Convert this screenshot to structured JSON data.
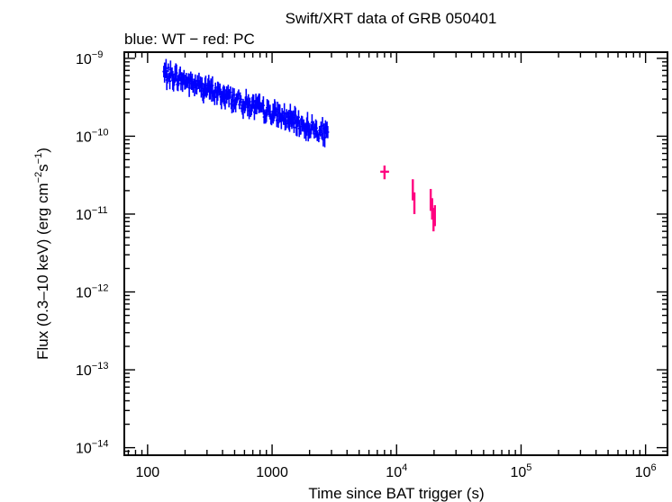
{
  "chart_data": {
    "type": "scatter",
    "title": "Swift/XRT data of GRB 050401",
    "subtitle": "blue: WT − red: PC",
    "xlabel": "Time since BAT trigger (s)",
    "ylabel_main": "Flux (0.3–10 keV) (erg cm",
    "ylabel_exp1": "−2",
    "ylabel_mid": "s",
    "ylabel_exp2": "−1",
    "ylabel_end": ")",
    "x_scale": "log",
    "y_scale": "log",
    "xlim": [
      65,
      1500000
    ],
    "ylim": [
      8e-15,
      1.2e-09
    ],
    "x_ticks": [
      {
        "value": 100,
        "label": "100"
      },
      {
        "value": 1000,
        "label": "1000"
      },
      {
        "value": 10000,
        "base": "10",
        "exp": "4"
      },
      {
        "value": 100000,
        "base": "10",
        "exp": "5"
      },
      {
        "value": 1000000,
        "base": "10",
        "exp": "6"
      }
    ],
    "y_ticks": [
      {
        "value": 1e-09,
        "base": "10",
        "exp": "−9"
      },
      {
        "value": 1e-10,
        "base": "10",
        "exp": "−10"
      },
      {
        "value": 1e-11,
        "base": "10",
        "exp": "−11"
      },
      {
        "value": 1e-12,
        "base": "10",
        "exp": "−12"
      },
      {
        "value": 1e-13,
        "base": "10",
        "exp": "−13"
      },
      {
        "value": 1e-14,
        "base": "10",
        "exp": "−14"
      }
    ],
    "series": [
      {
        "mode": "WT",
        "color": "#0000ff",
        "trend": {
          "t_start": 135,
          "t_end": 2800,
          "flux_start": 6.5e-10,
          "flux_end": 1.05e-10
        },
        "scatter_dex": 0.09
      },
      {
        "mode": "PC",
        "color": "#ff0080",
        "points": [
          {
            "x": 8000,
            "y": 3.5e-11,
            "xerr": [
              7400,
              8700
            ],
            "yerr": [
              2.8e-11,
              4.2e-11
            ]
          },
          {
            "x": 13500,
            "y": 2.1e-11,
            "xerr": [
              13300,
              13700
            ],
            "yerr": [
              1.5e-11,
              2.8e-11
            ]
          },
          {
            "x": 13900,
            "y": 1.4e-11,
            "xerr": [
              13700,
              14100
            ],
            "yerr": [
              1e-11,
              1.9e-11
            ]
          },
          {
            "x": 18800,
            "y": 1.6e-11,
            "xerr": [
              18600,
              19000
            ],
            "yerr": [
              1.1e-11,
              2.1e-11
            ]
          },
          {
            "x": 19300,
            "y": 1.2e-11,
            "xerr": [
              19100,
              19500
            ],
            "yerr": [
              8.5e-12,
              1.6e-11
            ]
          },
          {
            "x": 19800,
            "y": 9e-12,
            "xerr": [
              19600,
              20000
            ],
            "yerr": [
              6e-12,
              1.2e-11
            ]
          },
          {
            "x": 20300,
            "y": 1e-11,
            "xerr": [
              20100,
              20500
            ],
            "yerr": [
              7e-12,
              1.3e-11
            ]
          }
        ]
      }
    ]
  }
}
